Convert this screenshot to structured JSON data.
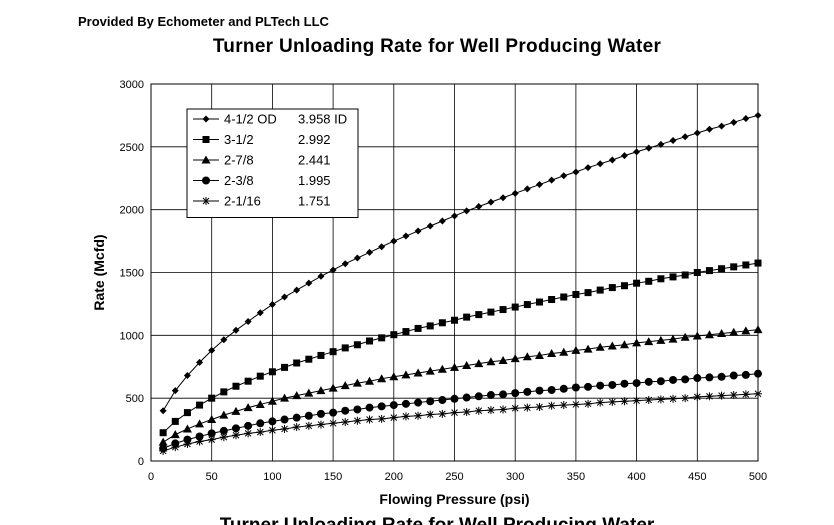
{
  "header": {
    "provided_by": "Provided By Echometer and PLTech LLC",
    "cutoff_title": "Turner Unloading Rate for Well Producing Water"
  },
  "chart_data": {
    "type": "line",
    "title": "Turner Unloading Rate for Well Producing Water",
    "xlabel": "Flowing Pressure (psi)",
    "ylabel": "Rate (Mcfd)",
    "xlim": [
      0,
      500
    ],
    "ylim": [
      0,
      3000
    ],
    "xticks": [
      0,
      50,
      100,
      150,
      200,
      250,
      300,
      350,
      400,
      450,
      500
    ],
    "yticks": [
      0,
      500,
      1000,
      1500,
      2000,
      2500,
      3000
    ],
    "grid": true,
    "legend_position": "top-left",
    "x": [
      10,
      20,
      30,
      40,
      50,
      60,
      70,
      80,
      90,
      100,
      110,
      120,
      130,
      140,
      150,
      160,
      170,
      180,
      190,
      200,
      210,
      220,
      230,
      240,
      250,
      260,
      270,
      280,
      290,
      300,
      310,
      320,
      330,
      340,
      350,
      360,
      370,
      380,
      390,
      400,
      410,
      420,
      430,
      440,
      450,
      460,
      470,
      480,
      490,
      500
    ],
    "series": [
      {
        "name": "4-1/2 OD",
        "id_label": "3.958 ID",
        "marker": "diamond",
        "values": [
          400,
          560,
          680,
          785,
          880,
          965,
          1040,
          1110,
          1180,
          1245,
          1305,
          1360,
          1415,
          1470,
          1520,
          1570,
          1615,
          1660,
          1705,
          1750,
          1790,
          1830,
          1870,
          1910,
          1950,
          1990,
          2025,
          2060,
          2095,
          2130,
          2165,
          2200,
          2235,
          2270,
          2300,
          2335,
          2365,
          2395,
          2430,
          2460,
          2490,
          2520,
          2550,
          2580,
          2610,
          2640,
          2665,
          2695,
          2725,
          2750
        ]
      },
      {
        "name": "3-1/2",
        "id_label": "2.992",
        "marker": "square",
        "values": [
          225,
          315,
          385,
          445,
          500,
          550,
          595,
          635,
          675,
          710,
          745,
          780,
          810,
          840,
          870,
          900,
          925,
          955,
          980,
          1005,
          1030,
          1055,
          1075,
          1100,
          1120,
          1145,
          1165,
          1185,
          1205,
          1225,
          1245,
          1265,
          1285,
          1305,
          1325,
          1340,
          1360,
          1380,
          1395,
          1415,
          1430,
          1450,
          1465,
          1480,
          1500,
          1515,
          1530,
          1545,
          1560,
          1575
        ]
      },
      {
        "name": "2-7/8",
        "id_label": "2.441",
        "marker": "triangle",
        "values": [
          150,
          210,
          255,
          295,
          330,
          365,
          395,
          425,
          450,
          475,
          500,
          520,
          540,
          560,
          580,
          600,
          620,
          635,
          655,
          670,
          685,
          700,
          715,
          730,
          745,
          760,
          775,
          790,
          800,
          815,
          830,
          840,
          855,
          865,
          880,
          890,
          905,
          915,
          925,
          940,
          950,
          960,
          970,
          985,
          995,
          1005,
          1015,
          1025,
          1035,
          1045
        ]
      },
      {
        "name": "2-3/8",
        "id_label": "1.995",
        "marker": "circle",
        "values": [
          100,
          140,
          170,
          195,
          220,
          240,
          260,
          280,
          300,
          315,
          330,
          345,
          360,
          375,
          385,
          400,
          410,
          425,
          435,
          445,
          455,
          465,
          475,
          485,
          495,
          505,
          515,
          525,
          530,
          540,
          550,
          560,
          565,
          575,
          585,
          590,
          600,
          605,
          615,
          620,
          630,
          635,
          645,
          650,
          660,
          665,
          670,
          680,
          685,
          695
        ]
      },
      {
        "name": "2-1/16",
        "id_label": "1.751",
        "marker": "asterisk",
        "values": [
          80,
          110,
          135,
          155,
          170,
          190,
          205,
          220,
          230,
          245,
          255,
          270,
          280,
          290,
          300,
          310,
          320,
          330,
          335,
          345,
          355,
          360,
          370,
          375,
          385,
          390,
          400,
          405,
          410,
          420,
          425,
          430,
          440,
          445,
          450,
          455,
          465,
          470,
          475,
          480,
          485,
          490,
          495,
          500,
          510,
          515,
          520,
          525,
          530,
          535
        ]
      }
    ]
  }
}
